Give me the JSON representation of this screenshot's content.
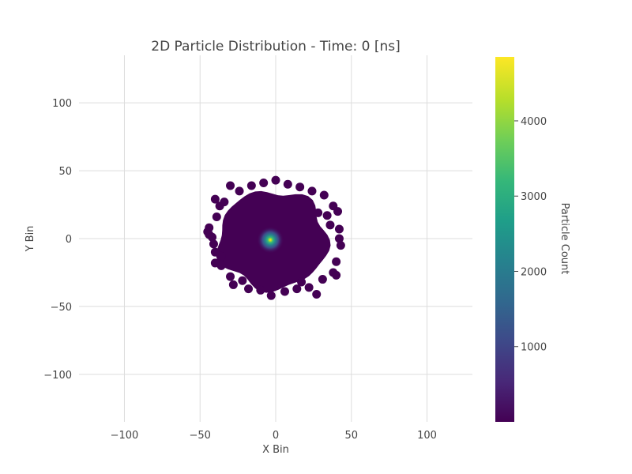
{
  "chart_data": {
    "type": "scatter",
    "title": "2D Particle Distribution - Time: 0 [ns]",
    "xlabel": "X Bin",
    "ylabel": "Y Bin",
    "xlim": [
      -130,
      130
    ],
    "ylim": [
      -135,
      135
    ],
    "xticks": [
      -100,
      -50,
      0,
      50,
      100
    ],
    "yticks": [
      100,
      50,
      0,
      -50,
      -100
    ],
    "xtick_labels": [
      "−100",
      "−50",
      "0",
      "50",
      "100"
    ],
    "ytick_labels": [
      "100",
      "50",
      "0",
      "−50",
      "−100"
    ],
    "grid": true,
    "colorscale": "viridis",
    "colorbar": {
      "title": "Particle Count",
      "range": [
        0,
        4850
      ],
      "ticks": [
        1000,
        2000,
        3000,
        4000
      ],
      "tick_labels": [
        "1000",
        "2000",
        "3000",
        "4000"
      ]
    },
    "distribution": {
      "center": [
        -2,
        -1
      ],
      "extent_radius": 43,
      "peak_count": 4850,
      "background_count": 1
    },
    "points": [
      [
        -30,
        39
      ],
      [
        -40,
        29
      ],
      [
        -39,
        16
      ],
      [
        -44,
        8
      ],
      [
        -45,
        5
      ],
      [
        -44,
        3
      ],
      [
        -42,
        1
      ],
      [
        -41,
        -4
      ],
      [
        -40,
        -10
      ],
      [
        -40,
        -18
      ],
      [
        -36,
        -20
      ],
      [
        -30,
        -28
      ],
      [
        -28,
        -34
      ],
      [
        -18,
        -37
      ],
      [
        -10,
        -38
      ],
      [
        -3,
        -42
      ],
      [
        6,
        -39
      ],
      [
        14,
        -37
      ],
      [
        22,
        -36
      ],
      [
        27,
        -41
      ],
      [
        31,
        -30
      ],
      [
        38,
        -25
      ],
      [
        40,
        -27
      ],
      [
        40,
        -17
      ],
      [
        43,
        -5
      ],
      [
        42,
        0
      ],
      [
        42,
        7
      ],
      [
        36,
        10
      ],
      [
        41,
        20
      ],
      [
        38,
        24
      ],
      [
        32,
        32
      ],
      [
        24,
        35
      ],
      [
        16,
        38
      ],
      [
        8,
        40
      ],
      [
        0,
        43
      ],
      [
        -8,
        41
      ],
      [
        -16,
        39
      ],
      [
        -24,
        35
      ],
      [
        -34,
        27
      ],
      [
        -37,
        24
      ],
      [
        28,
        19
      ],
      [
        34,
        17
      ],
      [
        -36,
        -13
      ],
      [
        17,
        -32
      ],
      [
        -22,
        -31
      ]
    ]
  }
}
